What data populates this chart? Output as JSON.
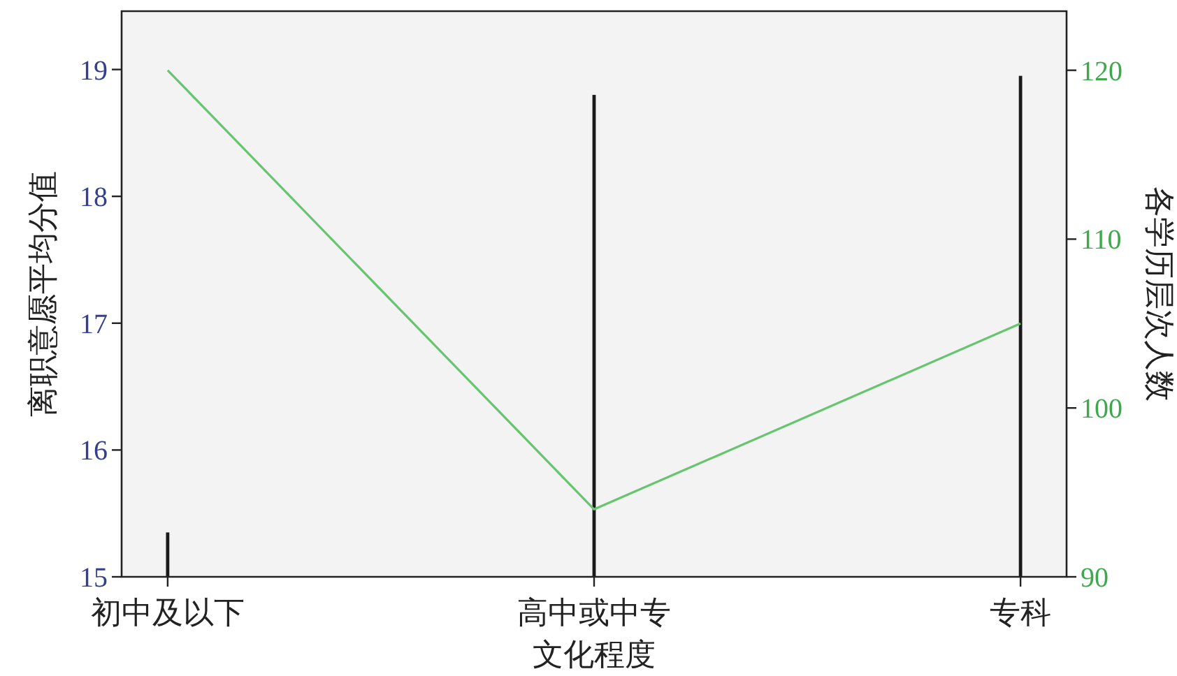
{
  "chart_data": {
    "type": "bar",
    "categories": [
      "初中及以下",
      "高中或中专",
      "专科"
    ],
    "xlabel": "文化程度",
    "ylabel": "离职意愿平均分值",
    "y2label": "各学历层次人数",
    "ylim": [
      15,
      19.46
    ],
    "yticks": [
      15,
      16,
      17,
      18,
      19
    ],
    "y2lim": [
      90,
      123.5
    ],
    "y2ticks": [
      90,
      100,
      110,
      120
    ],
    "series": [
      {
        "color": "#1a1a1a",
        "values": [
          15.35,
          18.8,
          18.95
        ]
      },
      {
        "type": "line",
        "axis": "y2",
        "color": "#66c56e",
        "values": [
          120,
          94,
          105
        ]
      }
    ]
  }
}
